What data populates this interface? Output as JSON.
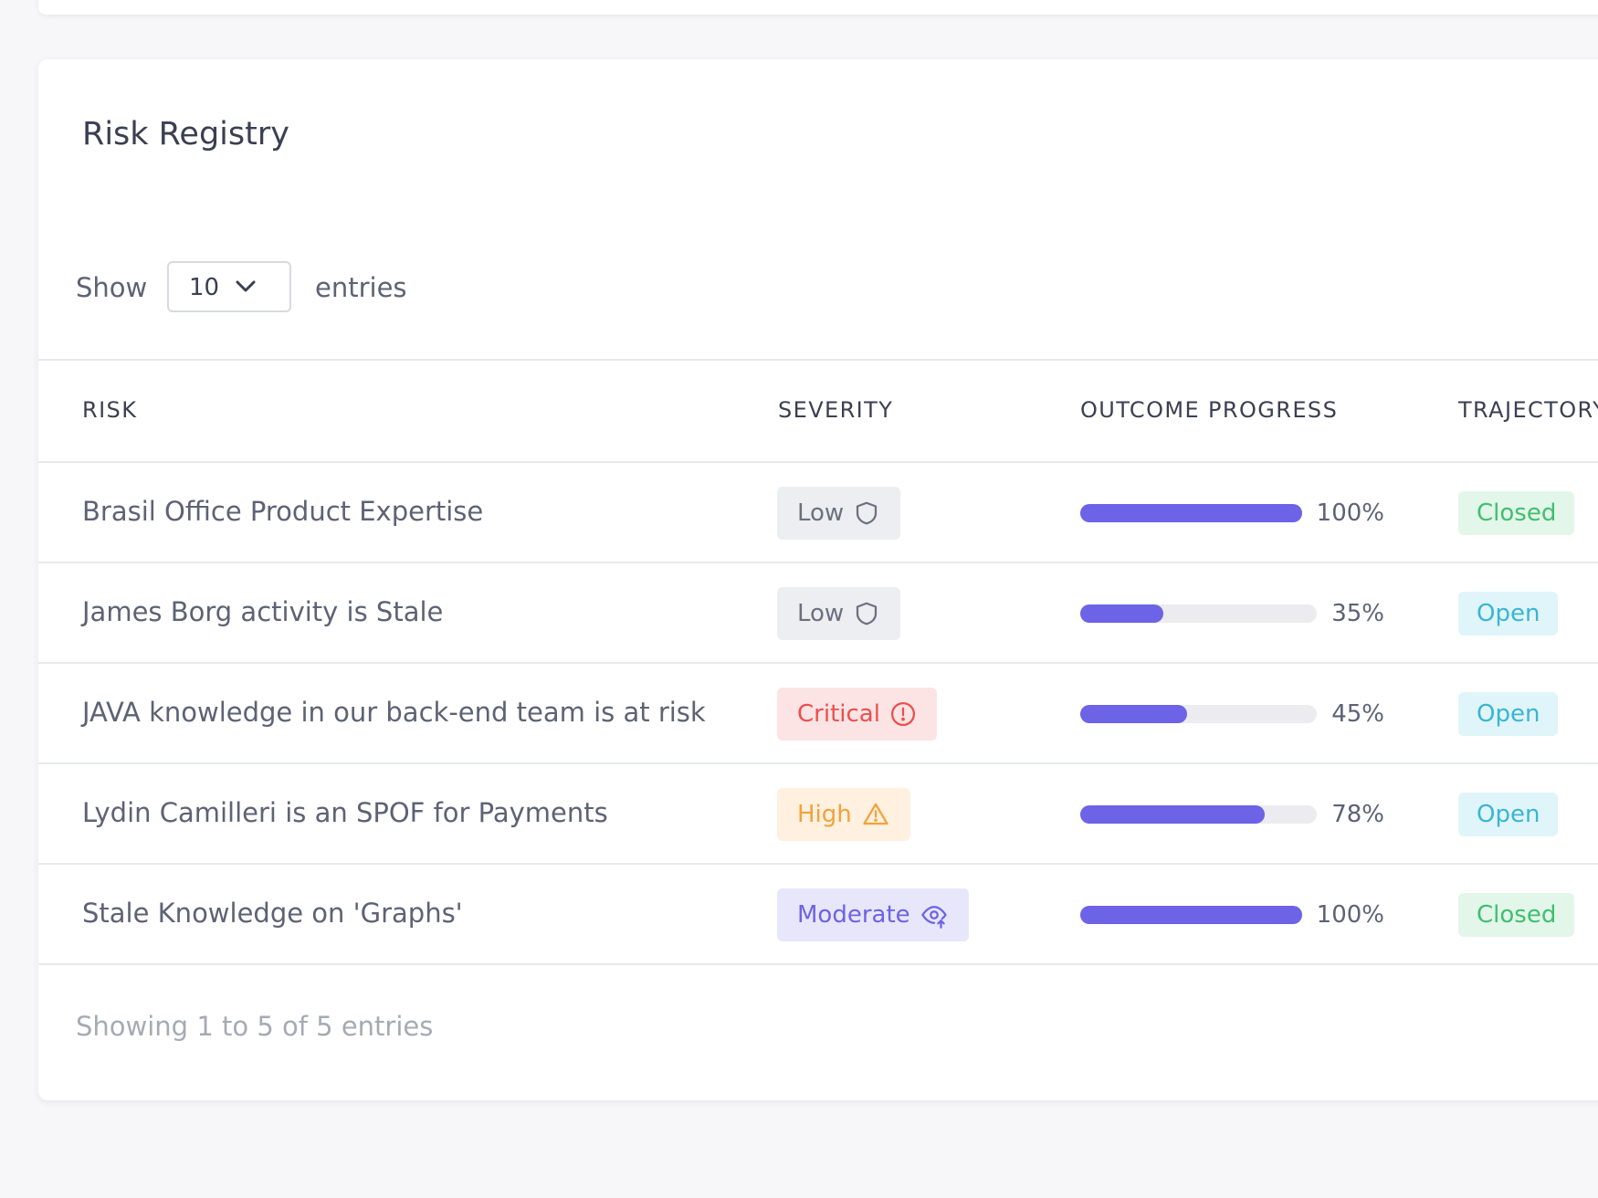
{
  "card": {
    "title": "Risk Registry"
  },
  "length_control": {
    "before": "Show",
    "selected": "10",
    "after": "entries"
  },
  "table": {
    "headers": [
      "RISK",
      "SEVERITY",
      "OUTCOME PROGRESS",
      "TRAJECTORY"
    ],
    "rows": [
      {
        "risk": "Brasil Office Product Expertise",
        "severity": "Low",
        "progress": {
          "value": 100,
          "label": "100%"
        },
        "trajectory": "Closed"
      },
      {
        "risk": "James Borg activity is Stale",
        "severity": "Low",
        "progress": {
          "value": 35,
          "label": "35%"
        },
        "trajectory": "Open"
      },
      {
        "risk": "JAVA knowledge in our back-end team is at risk",
        "severity": "Critical",
        "progress": {
          "value": 45,
          "label": "45%"
        },
        "trajectory": "Open"
      },
      {
        "risk": "Lydin Camilleri is an SPOF for Payments",
        "severity": "High",
        "progress": {
          "value": 78,
          "label": "78%"
        },
        "trajectory": "Open"
      },
      {
        "risk": "Stale Knowledge on 'Graphs'",
        "severity": "Moderate",
        "progress": {
          "value": 100,
          "label": "100%"
        },
        "trajectory": "Closed"
      }
    ]
  },
  "footer": {
    "info": "Showing 1 to 5 of 5 entries"
  }
}
